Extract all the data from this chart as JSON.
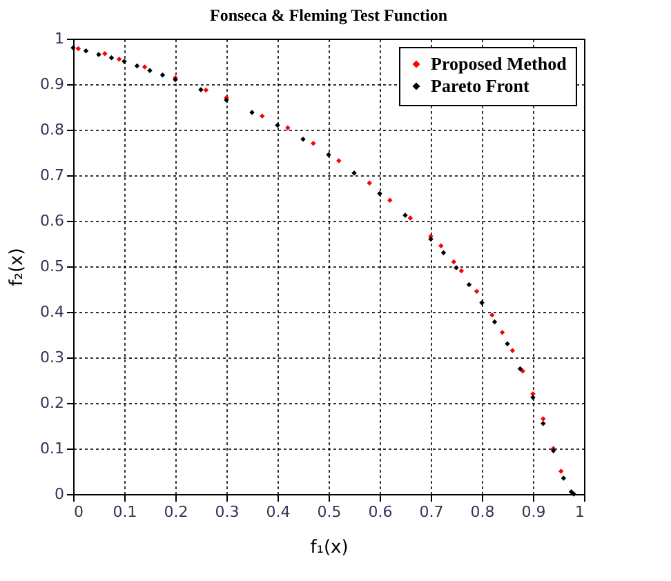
{
  "chart_data": {
    "type": "scatter",
    "title": "Fonseca & Fleming Test Function",
    "xlabel": "f₁(x)",
    "ylabel": "f₂(x)",
    "xlim": [
      0,
      1
    ],
    "ylim": [
      0,
      1
    ],
    "xticks": [
      0,
      0.1,
      0.2,
      0.3,
      0.4,
      0.5,
      0.6,
      0.7,
      0.8,
      0.9,
      1
    ],
    "yticks": [
      0,
      0.1,
      0.2,
      0.3,
      0.4,
      0.5,
      0.6,
      0.7,
      0.8,
      0.9,
      1
    ],
    "grid": true,
    "legend": "top right",
    "marker": "diamond",
    "series": [
      {
        "name": "Proposed Method",
        "color": "#ff0000",
        "x": [
          0.01,
          0.062,
          0.09,
          0.14,
          0.2,
          0.26,
          0.3,
          0.37,
          0.42,
          0.47,
          0.52,
          0.58,
          0.62,
          0.66,
          0.7,
          0.72,
          0.745,
          0.76,
          0.79,
          0.82,
          0.84,
          0.86,
          0.88,
          0.9,
          0.92,
          0.94,
          0.955
        ],
        "values": [
          0.978,
          0.967,
          0.955,
          0.938,
          0.914,
          0.887,
          0.87,
          0.83,
          0.804,
          0.77,
          0.732,
          0.683,
          0.645,
          0.606,
          0.566,
          0.545,
          0.51,
          0.49,
          0.445,
          0.393,
          0.355,
          0.315,
          0.27,
          0.22,
          0.165,
          0.1,
          0.05
        ]
      },
      {
        "name": "Pareto Front",
        "color": "#000000",
        "x": [
          0,
          0.025,
          0.05,
          0.075,
          0.1,
          0.125,
          0.15,
          0.175,
          0.2,
          0.25,
          0.3,
          0.35,
          0.4,
          0.45,
          0.5,
          0.55,
          0.6,
          0.65,
          0.7,
          0.725,
          0.75,
          0.775,
          0.8,
          0.825,
          0.85,
          0.875,
          0.9,
          0.92,
          0.94,
          0.96,
          0.975,
          0.98
        ],
        "values": [
          0.98,
          0.973,
          0.965,
          0.958,
          0.95,
          0.94,
          0.93,
          0.92,
          0.91,
          0.888,
          0.865,
          0.838,
          0.81,
          0.779,
          0.745,
          0.705,
          0.66,
          0.612,
          0.56,
          0.53,
          0.497,
          0.46,
          0.42,
          0.378,
          0.33,
          0.275,
          0.212,
          0.155,
          0.095,
          0.035,
          0.005,
          0
        ]
      }
    ]
  }
}
